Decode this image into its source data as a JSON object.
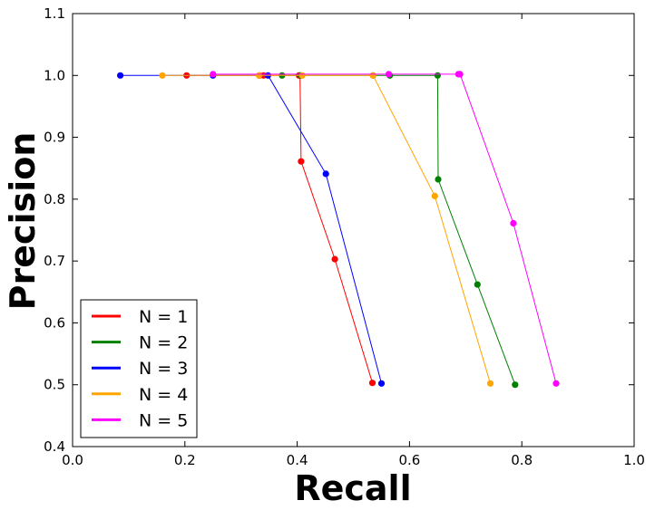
{
  "chart_data": {
    "type": "line",
    "title": "",
    "xlabel": "Recall",
    "ylabel": "Precision",
    "xlim": [
      0.0,
      1.0
    ],
    "ylim": [
      0.4,
      1.1
    ],
    "xticks": [
      "0.0",
      "0.2",
      "0.4",
      "0.6",
      "0.8",
      "1.0"
    ],
    "yticks": [
      "0.4",
      "0.5",
      "0.6",
      "0.7",
      "0.8",
      "0.9",
      "1.0",
      "1.1"
    ],
    "xtick_values": [
      0.0,
      0.2,
      0.4,
      0.6,
      0.8,
      1.0
    ],
    "ytick_values": [
      0.4,
      0.5,
      0.6,
      0.7,
      0.8,
      0.9,
      1.0,
      1.1
    ],
    "legend_position": "lower-left",
    "series": [
      {
        "name": "N = 1",
        "color": "#ff0000",
        "x": [
          0.203,
          0.333,
          0.34,
          0.403,
          0.405,
          0.407,
          0.467,
          0.534
        ],
        "y": [
          1.0,
          1.0,
          1.0,
          1.0,
          1.0,
          0.861,
          0.703,
          0.503
        ]
      },
      {
        "name": "N = 2",
        "color": "#008000",
        "x": [
          0.373,
          0.406,
          0.535,
          0.565,
          0.65,
          0.651,
          0.721,
          0.788
        ],
        "y": [
          1.0,
          1.0,
          1.0,
          1.0,
          1.0,
          0.832,
          0.662,
          0.5
        ]
      },
      {
        "name": "N = 3",
        "color": "#0000ff",
        "x": [
          0.085,
          0.25,
          0.348,
          0.451,
          0.55
        ],
        "y": [
          1.0,
          1.0,
          1.0,
          0.841,
          0.502
        ]
      },
      {
        "name": "N = 4",
        "color": "#ffa500",
        "x": [
          0.16,
          0.332,
          0.409,
          0.535,
          0.645,
          0.744
        ],
        "y": [
          1.0,
          1.0,
          1.0,
          1.0,
          0.805,
          0.502
        ]
      },
      {
        "name": "N = 5",
        "color": "#ff00ff",
        "x": [
          0.25,
          0.563,
          0.687,
          0.69,
          0.785,
          0.861
        ],
        "y": [
          1.002,
          1.002,
          1.002,
          1.002,
          0.761,
          0.502
        ]
      }
    ]
  }
}
